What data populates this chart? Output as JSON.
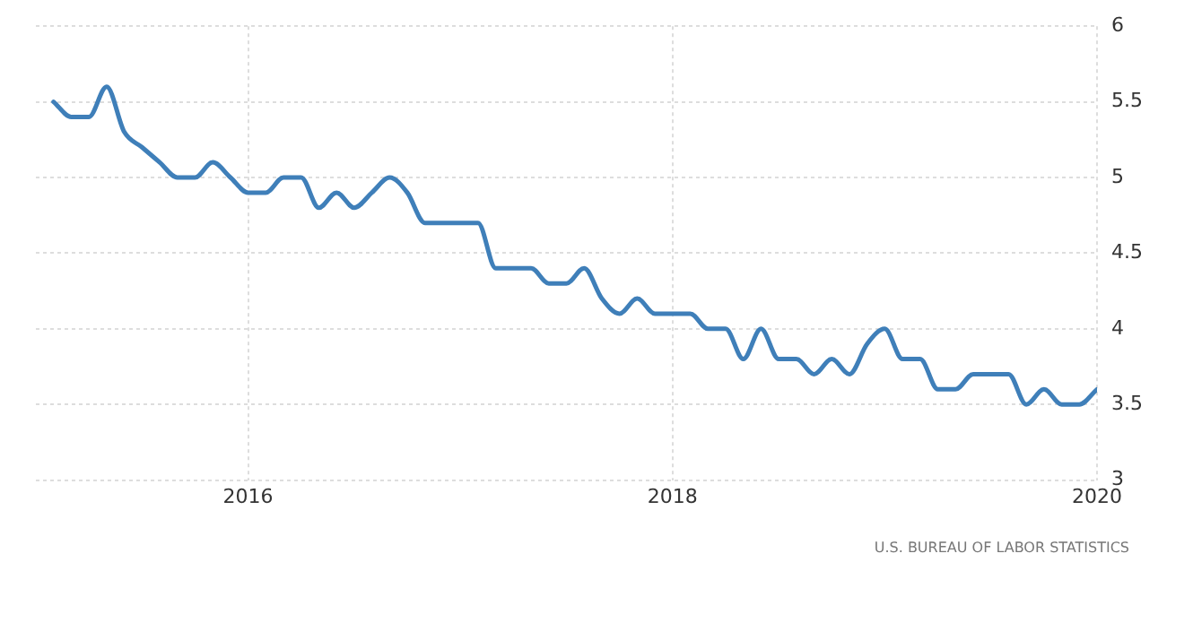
{
  "chart_data": {
    "type": "line",
    "x": [
      "2015-02",
      "2015-03",
      "2015-04",
      "2015-05",
      "2015-06",
      "2015-07",
      "2015-08",
      "2015-09",
      "2015-10",
      "2015-11",
      "2015-12",
      "2016-01",
      "2016-02",
      "2016-03",
      "2016-04",
      "2016-05",
      "2016-06",
      "2016-07",
      "2016-08",
      "2016-09",
      "2016-10",
      "2016-11",
      "2016-12",
      "2017-01",
      "2017-02",
      "2017-03",
      "2017-04",
      "2017-05",
      "2017-06",
      "2017-07",
      "2017-08",
      "2017-09",
      "2017-10",
      "2017-11",
      "2017-12",
      "2018-01",
      "2018-02",
      "2018-03",
      "2018-04",
      "2018-05",
      "2018-06",
      "2018-07",
      "2018-08",
      "2018-09",
      "2018-10",
      "2018-11",
      "2018-12",
      "2019-01",
      "2019-02",
      "2019-03",
      "2019-04",
      "2019-05",
      "2019-06",
      "2019-07",
      "2019-08",
      "2019-09",
      "2019-10",
      "2019-11",
      "2019-12",
      "2020-01"
    ],
    "series": [
      {
        "color": "#3f7fb9",
        "values": [
          5.5,
          5.4,
          5.4,
          5.6,
          5.3,
          5.2,
          5.1,
          5.0,
          5.0,
          5.1,
          5.0,
          4.9,
          4.9,
          5.0,
          5.0,
          4.8,
          4.9,
          4.8,
          4.9,
          5.0,
          4.9,
          4.7,
          4.7,
          4.7,
          4.7,
          4.4,
          4.4,
          4.4,
          4.3,
          4.3,
          4.4,
          4.2,
          4.1,
          4.2,
          4.1,
          4.1,
          4.1,
          4.0,
          4.0,
          3.8,
          4.0,
          3.8,
          3.8,
          3.7,
          3.8,
          3.7,
          3.9,
          4.0,
          3.8,
          3.8,
          3.6,
          3.6,
          3.7,
          3.7,
          3.7,
          3.5,
          3.6,
          3.5,
          3.5,
          3.6
        ]
      }
    ],
    "xlim": [
      "2015-01",
      "2020-01"
    ],
    "xticks": [
      {
        "value": "2016-01",
        "label": "2016"
      },
      {
        "value": "2018-01",
        "label": "2018"
      },
      {
        "value": "2020-01",
        "label": "2020"
      }
    ],
    "ylim": [
      3,
      6
    ],
    "yticks": [
      3,
      3.5,
      4,
      4.5,
      5,
      5.5,
      6
    ],
    "grid": true,
    "legend": false,
    "marker": "none",
    "line_style": "solid",
    "annotations": [
      "U.S. BUREAU OF LABOR STATISTICS"
    ]
  }
}
